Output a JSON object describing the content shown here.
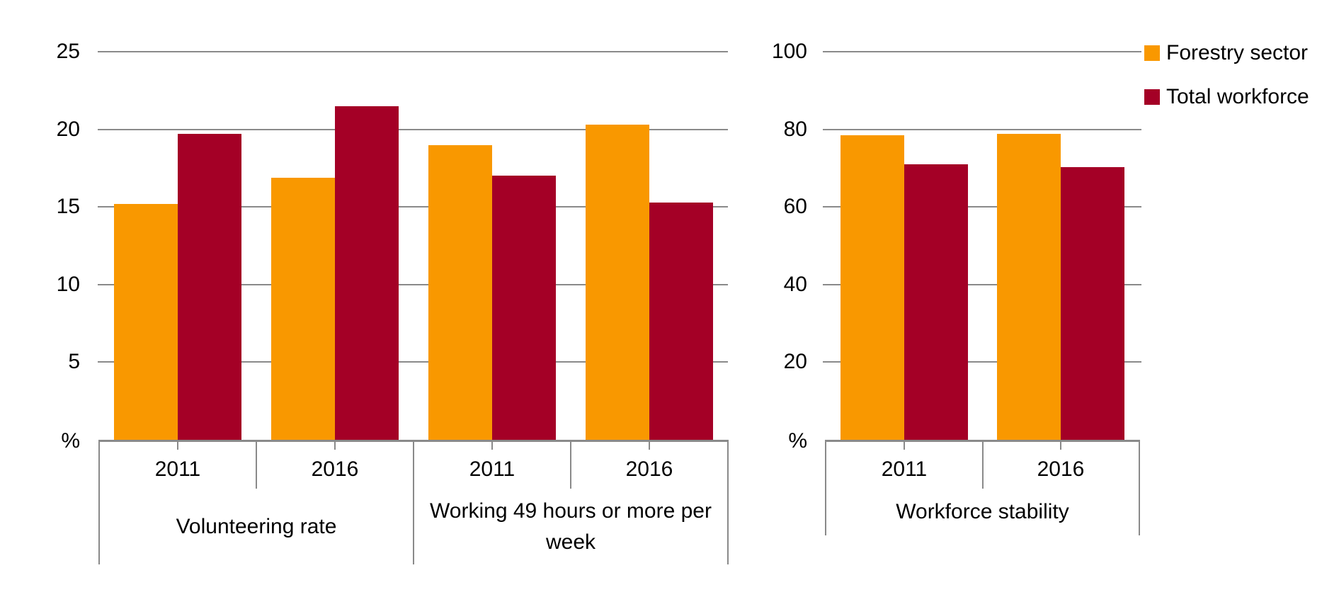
{
  "legend": {
    "items": [
      {
        "label": "Forestry sector",
        "color": "#F99800"
      },
      {
        "label": "Total workforce",
        "color": "#A40026"
      }
    ]
  },
  "chart_data": [
    {
      "type": "bar",
      "title": "",
      "ylabel": "%",
      "y_axis": {
        "min": 0,
        "max": 25,
        "tick_interval": 5,
        "ticks": [
          25,
          20,
          15,
          10,
          5
        ],
        "zero_label": "%",
        "grid": true
      },
      "groups": [
        {
          "label": "Volunteering rate",
          "categories": [
            "2011",
            "2016"
          ]
        },
        {
          "label": "Working 49 hours or more per week",
          "categories": [
            "2011",
            "2016"
          ]
        }
      ],
      "series": [
        {
          "name": "Forestry sector",
          "color": "#F99800",
          "values": [
            15.2,
            16.9,
            19.0,
            20.3
          ]
        },
        {
          "name": "Total workforce",
          "color": "#A40026",
          "values": [
            19.7,
            21.5,
            17.0,
            15.3
          ]
        }
      ],
      "legend_position": "none"
    },
    {
      "type": "bar",
      "title": "",
      "ylabel": "%",
      "y_axis": {
        "min": 0,
        "max": 100,
        "tick_interval": 20,
        "ticks": [
          100,
          80,
          60,
          40,
          20
        ],
        "zero_label": "%",
        "grid": true
      },
      "groups": [
        {
          "label": "Workforce stability",
          "categories": [
            "2011",
            "2016"
          ]
        }
      ],
      "series": [
        {
          "name": "Forestry sector",
          "color": "#F99800",
          "values": [
            78.4,
            78.8
          ]
        },
        {
          "name": "Total workforce",
          "color": "#A40026",
          "values": [
            70.9,
            70.3
          ]
        }
      ],
      "legend_position": "top-right"
    }
  ]
}
